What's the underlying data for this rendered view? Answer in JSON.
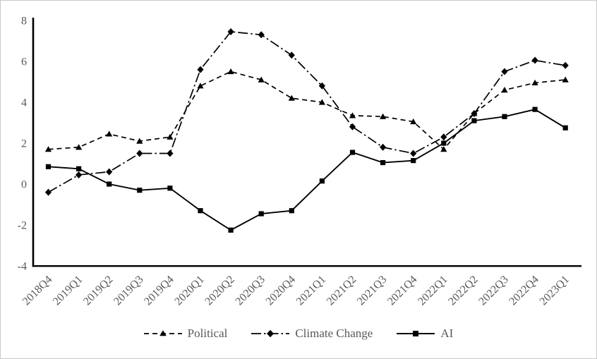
{
  "chart_data": {
    "type": "line",
    "title": "",
    "xlabel": "",
    "ylabel": "",
    "categories": [
      "2018Q4",
      "2019Q1",
      "2019Q2",
      "2019Q3",
      "2019Q4",
      "2020Q1",
      "2020Q2",
      "2020Q3",
      "2020Q4",
      "2021Q1",
      "2021Q2",
      "2021Q3",
      "2021Q4",
      "2022Q1",
      "2022Q2",
      "2022Q3",
      "2022Q4",
      "2023Q1"
    ],
    "series": [
      {
        "name": "Political",
        "marker": "triangle",
        "line_style": "dashed",
        "color": "#000000",
        "values": [
          1.7,
          1.8,
          2.45,
          2.1,
          2.3,
          4.8,
          5.5,
          5.1,
          4.2,
          4.0,
          3.35,
          3.3,
          3.05,
          1.7,
          3.45,
          4.6,
          4.95,
          5.1
        ]
      },
      {
        "name": "Climate Change",
        "marker": "diamond",
        "line_style": "dash-dot",
        "color": "#000000",
        "values": [
          -0.4,
          0.45,
          0.6,
          1.5,
          1.5,
          5.6,
          7.45,
          7.3,
          6.3,
          4.8,
          2.8,
          1.8,
          1.5,
          2.3,
          3.45,
          5.5,
          6.05,
          5.8
        ]
      },
      {
        "name": "AI",
        "marker": "square",
        "line_style": "solid",
        "color": "#000000",
        "values": [
          0.85,
          0.75,
          0.0,
          -0.3,
          -0.2,
          -1.3,
          -2.25,
          -1.45,
          -1.3,
          0.15,
          1.55,
          1.05,
          1.15,
          2.0,
          3.1,
          3.3,
          3.65,
          2.75
        ]
      }
    ],
    "ylim": [
      -4,
      8
    ],
    "y_ticks": [
      8,
      6,
      4,
      2,
      0,
      -2,
      -4
    ],
    "grid": false,
    "legend_position": "bottom",
    "axis_text_color": "#595959",
    "axis_line_color": "#000000"
  }
}
